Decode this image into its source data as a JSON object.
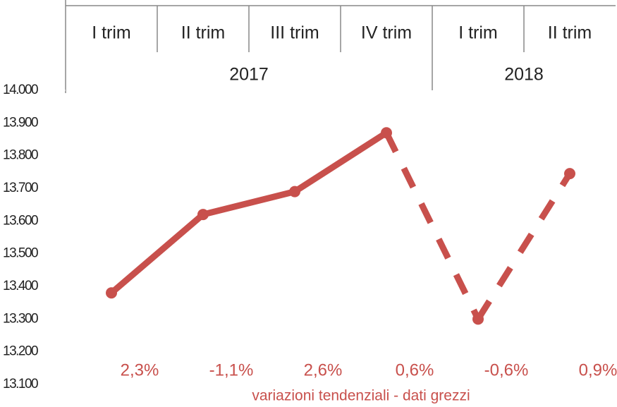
{
  "chart_data": {
    "type": "line",
    "subtitle": "variazioni tendenziali - dati grezzi",
    "categories": [
      "I trim",
      "II trim",
      "III trim",
      "IV trim",
      "I trim",
      "II trim"
    ],
    "groups": [
      {
        "label": "2017",
        "span": 4
      },
      {
        "label": "2018",
        "span": 2
      }
    ],
    "values": [
      13380,
      13620,
      13690,
      13870,
      13300,
      13745
    ],
    "dashed": [
      false,
      false,
      false,
      false,
      true,
      true
    ],
    "color": "#c8504c",
    "variations": {
      "values": [
        2.3,
        -1.1,
        2.6,
        0.6,
        -0.6,
        0.9
      ],
      "value_labels": [
        "2,3%",
        "-1,1%",
        "2,6%",
        "0,6%",
        "-0,6%",
        "0,9%"
      ],
      "color": "#c8504c"
    },
    "ylim": [
      13100,
      14000
    ],
    "yticks": [
      {
        "value": 13100,
        "label": "13.100"
      },
      {
        "value": 13200,
        "label": "13.200"
      },
      {
        "value": 13300,
        "label": "13.300"
      },
      {
        "value": 13400,
        "label": "13.400"
      },
      {
        "value": 13500,
        "label": "13.500"
      },
      {
        "value": 13600,
        "label": "13.600"
      },
      {
        "value": 13700,
        "label": "13.700"
      },
      {
        "value": 13800,
        "label": "13.800"
      },
      {
        "value": 13900,
        "label": "13.900"
      },
      {
        "value": 14000,
        "label": "14.000"
      }
    ]
  }
}
